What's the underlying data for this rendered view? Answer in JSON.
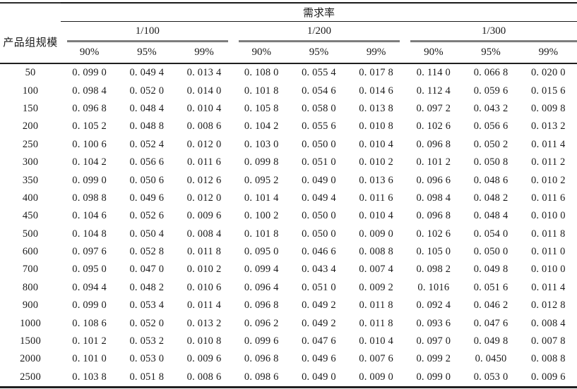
{
  "table": {
    "top_header": "需求率",
    "row_header": "产品组规模",
    "groups": [
      {
        "label": "1/100",
        "sub": [
          "90%",
          "95%",
          "99%"
        ]
      },
      {
        "label": "1/200",
        "sub": [
          "90%",
          "95%",
          "99%"
        ]
      },
      {
        "label": "1/300",
        "sub": [
          "90%",
          "95%",
          "99%"
        ]
      }
    ],
    "rows": [
      {
        "size": "50",
        "values": [
          "0. 099 0",
          "0. 049 4",
          "0. 013 4",
          "0. 108 0",
          "0. 055 4",
          "0. 017 8",
          "0. 114 0",
          "0. 066 8",
          "0. 020 0"
        ]
      },
      {
        "size": "100",
        "values": [
          "0. 098 4",
          "0. 052 0",
          "0. 014 0",
          "0. 101 8",
          "0. 054 6",
          "0. 014 6",
          "0. 112 4",
          "0. 059 6",
          "0. 015 6"
        ]
      },
      {
        "size": "150",
        "values": [
          "0. 096 8",
          "0. 048 4",
          "0. 010 4",
          "0. 105 8",
          "0. 058 0",
          "0. 013 8",
          "0. 097 2",
          "0. 043 2",
          "0. 009 8"
        ]
      },
      {
        "size": "200",
        "values": [
          "0. 105 2",
          "0. 048 8",
          "0. 008 6",
          "0. 104 2",
          "0. 055 6",
          "0. 010 8",
          "0. 102 6",
          "0. 056 6",
          "0. 013 2"
        ]
      },
      {
        "size": "250",
        "values": [
          "0. 100 6",
          "0. 052 4",
          "0. 012 0",
          "0. 103 0",
          "0. 050 0",
          "0. 010 4",
          "0. 096 8",
          "0. 050 2",
          "0. 011 4"
        ]
      },
      {
        "size": "300",
        "values": [
          "0. 104 2",
          "0. 056 6",
          "0. 011 6",
          "0. 099 8",
          "0. 051 0",
          "0. 010 2",
          "0. 101 2",
          "0. 050 8",
          "0. 011 2"
        ]
      },
      {
        "size": "350",
        "values": [
          "0. 099 0",
          "0. 050 6",
          "0. 012 6",
          "0. 095 2",
          "0. 049 0",
          "0. 013 6",
          "0. 096 6",
          "0. 048 6",
          "0. 010 2"
        ]
      },
      {
        "size": "400",
        "values": [
          "0. 098 8",
          "0. 049 6",
          "0. 012 0",
          "0. 101 4",
          "0. 049 4",
          "0. 011 6",
          "0. 098 4",
          "0. 048 2",
          "0. 011 6"
        ]
      },
      {
        "size": "450",
        "values": [
          "0. 104 6",
          "0. 052 6",
          "0. 009 6",
          "0. 100 2",
          "0. 050 0",
          "0. 010 4",
          "0. 096 8",
          "0. 048 4",
          "0. 010 0"
        ]
      },
      {
        "size": "500",
        "values": [
          "0. 104 8",
          "0. 050 4",
          "0. 008 4",
          "0. 101 8",
          "0. 050 0",
          "0. 009 0",
          "0. 102 6",
          "0. 054 0",
          "0. 011 8"
        ]
      },
      {
        "size": "600",
        "values": [
          "0. 097 6",
          "0. 052 8",
          "0. 011 8",
          "0. 095 0",
          "0. 046 6",
          "0. 008 8",
          "0. 105 0",
          "0. 050 0",
          "0. 011 0"
        ]
      },
      {
        "size": "700",
        "values": [
          "0. 095 0",
          "0. 047 0",
          "0. 010 2",
          "0. 099 4",
          "0. 043 4",
          "0. 007 4",
          "0. 098 2",
          "0. 049 8",
          "0. 010 0"
        ]
      },
      {
        "size": "800",
        "values": [
          "0. 094 4",
          "0. 048 2",
          "0. 010 6",
          "0. 096 4",
          "0. 051 0",
          "0. 009 2",
          "0. 1016",
          "0. 051 6",
          "0. 011 4"
        ]
      },
      {
        "size": "900",
        "values": [
          "0. 099 0",
          "0. 053 4",
          "0. 011 4",
          "0. 096 8",
          "0. 049 2",
          "0. 011 8",
          "0. 092 4",
          "0. 046 2",
          "0. 012 8"
        ]
      },
      {
        "size": "1000",
        "values": [
          "0. 108 6",
          "0. 052 0",
          "0. 013 2",
          "0. 096 2",
          "0. 049 2",
          "0. 011 8",
          "0. 093 6",
          "0. 047 6",
          "0. 008 4"
        ]
      },
      {
        "size": "1500",
        "values": [
          "0. 101 2",
          "0. 053 2",
          "0. 010 8",
          "0. 099 6",
          "0. 047 6",
          "0. 010 4",
          "0. 097 0",
          "0. 049 8",
          "0. 007 8"
        ]
      },
      {
        "size": "2000",
        "values": [
          "0. 101 0",
          "0. 053 0",
          "0. 009 6",
          "0. 096 8",
          "0. 049 6",
          "0. 007 6",
          "0. 099 2",
          "0. 0450",
          "0. 008 8"
        ]
      },
      {
        "size": "2500",
        "values": [
          "0. 103 8",
          "0. 051 8",
          "0. 008 6",
          "0. 098 6",
          "0. 049 0",
          "0. 009 0",
          "0. 099 0",
          "0. 053 0",
          "0. 009 6"
        ]
      }
    ]
  }
}
